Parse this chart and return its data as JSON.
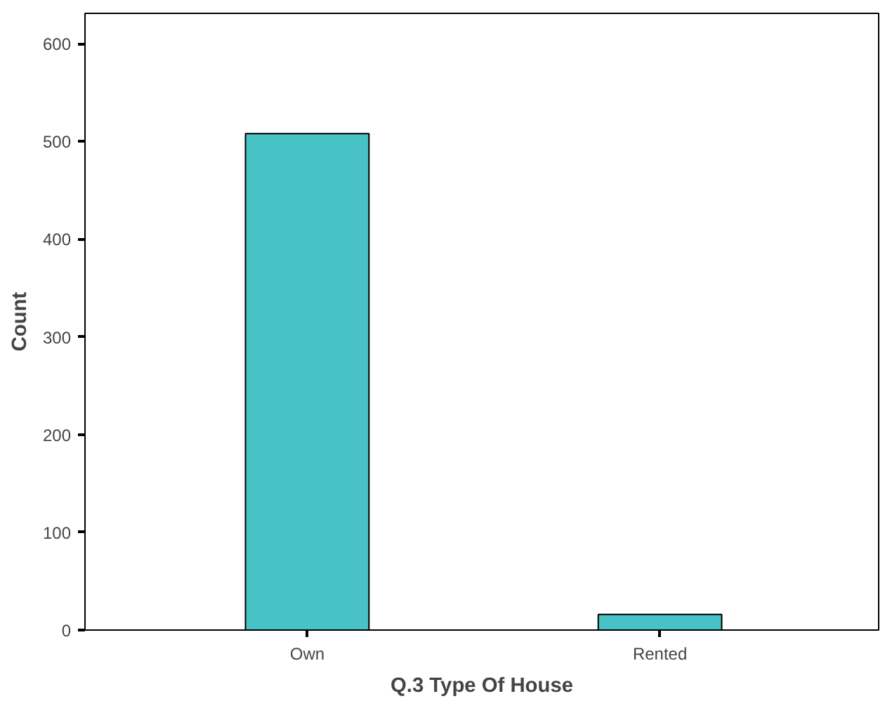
{
  "chart_data": {
    "type": "bar",
    "xlabel": "Q.3 Type Of House",
    "ylabel": "Count",
    "categories": [
      "Own",
      "Rented"
    ],
    "values": [
      508,
      16
    ],
    "color": "#48c2c5",
    "ylim": [
      0,
      631
    ],
    "yticks": [
      0,
      100,
      200,
      300,
      400,
      500,
      600
    ],
    "grid": false
  }
}
